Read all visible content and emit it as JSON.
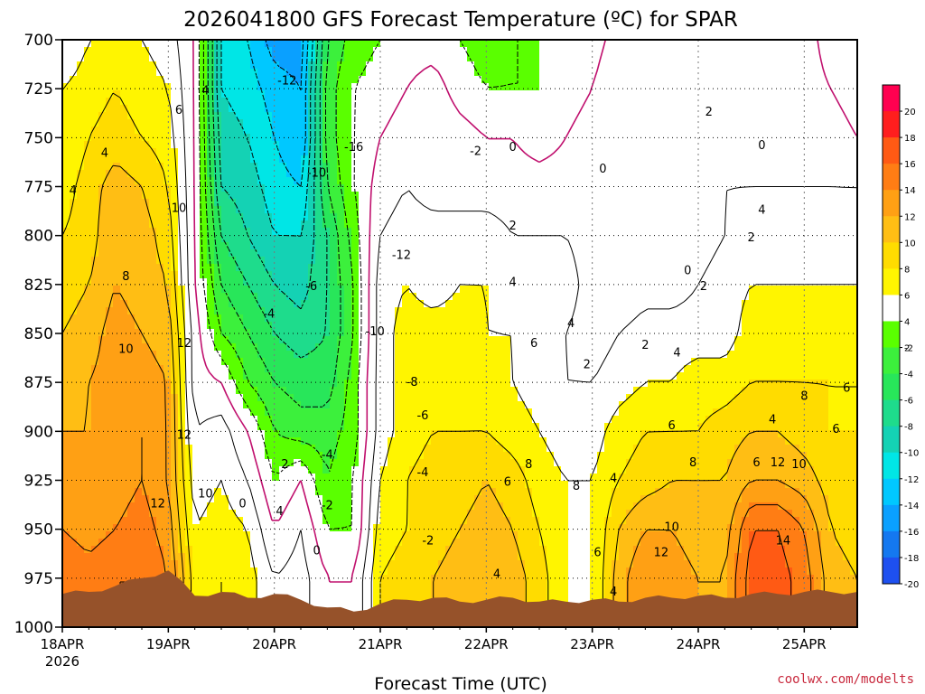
{
  "chart_data": {
    "type": "heatmap",
    "title": "2026041800 GFS Forecast Temperature (ºC) for SPAR",
    "xlabel": "Forecast Time (UTC)",
    "ylabel": "",
    "credit": "coolwx.com/modelts",
    "y_ticks": [
      "700",
      "725",
      "750",
      "775",
      "800",
      "825",
      "850",
      "875",
      "900",
      "925",
      "950",
      "975",
      "1000"
    ],
    "ylim": [
      1000,
      700
    ],
    "x_ticks": [
      "18APR",
      "19APR",
      "20APR",
      "21APR",
      "22APR",
      "23APR",
      "24APR",
      "25APR"
    ],
    "x_first_year": "2026",
    "xlim_days": [
      0,
      7.5
    ],
    "grid": true,
    "colorbar": {
      "labels": [
        "20",
        "18",
        "16",
        "14",
        "12",
        "10",
        "8",
        "6",
        "4",
        "2",
        "-2",
        "-4",
        "-6",
        "-8",
        "-10",
        "-12",
        "-14",
        "-16",
        "-18",
        "-20"
      ],
      "colors": [
        "#ff0050",
        "#ff1e1e",
        "#ff5a14",
        "#ff7d14",
        "#ffa014",
        "#ffbe14",
        "#ffdc00",
        "#fff500",
        "#ffffff",
        "#5aff00",
        "#3cf03c",
        "#28e65a",
        "#1edc8c",
        "#14d2b4",
        "#00e6e6",
        "#00c8ff",
        "#0aa0ff",
        "#1478f0",
        "#1e50f0"
      ]
    },
    "x_days": [
      0,
      0.25,
      0.5,
      0.75,
      1,
      1.25,
      1.5,
      1.75,
      2,
      2.25,
      2.5,
      2.75,
      3,
      3.25,
      3.5,
      3.75,
      4,
      4.25,
      4.5,
      4.75,
      5,
      5.25,
      5.5,
      5.75,
      6,
      6.25,
      6.5,
      6.75,
      7,
      7.25,
      7.5
    ],
    "levels_hpa": [
      700,
      725,
      750,
      775,
      800,
      825,
      850,
      875,
      900,
      925,
      950,
      975
    ],
    "temperature_c": [
      [
        2,
        4,
        4,
        4,
        3,
        0,
        -12,
        -14,
        -17,
        -17,
        -6,
        -3,
        -2,
        -1,
        -1,
        -2,
        -3,
        -2,
        -2,
        -2,
        -1,
        1,
        2,
        1,
        0,
        0,
        1,
        1,
        1,
        -1,
        -2
      ],
      [
        4,
        5,
        6,
        5,
        4,
        0,
        -12,
        -13,
        -15,
        -16,
        -5,
        -2,
        -1,
        0,
        1,
        -1,
        -2,
        -2,
        -2,
        -1,
        0,
        2,
        2,
        1,
        0,
        1,
        1,
        1,
        1,
        0,
        -1
      ],
      [
        4,
        6,
        7,
        6,
        5,
        0,
        -11,
        -12,
        -14,
        -16,
        -5,
        -2,
        0,
        1,
        2,
        1,
        0,
        0,
        -1,
        0,
        1,
        1,
        1,
        0,
        0,
        1,
        1,
        1,
        1,
        1,
        0
      ],
      [
        5,
        7,
        9,
        8,
        6,
        0,
        -10,
        -11,
        -13,
        -14,
        -6,
        -2,
        1,
        2,
        1,
        1,
        1,
        1,
        1,
        1,
        1,
        1,
        2,
        1,
        1,
        2,
        2,
        2,
        2,
        2,
        2
      ],
      [
        6,
        7,
        10,
        9,
        7,
        0,
        -8,
        -10,
        -12,
        -12,
        -8,
        -3,
        2,
        3,
        3,
        3,
        3,
        2,
        2,
        2,
        1,
        1,
        1,
        1,
        1,
        2,
        3,
        3,
        3,
        3,
        3
      ],
      [
        7,
        8,
        10,
        9,
        8,
        0,
        -6,
        -8,
        -10,
        -11,
        -8,
        -4,
        3,
        4,
        3,
        4,
        4,
        3,
        3,
        3,
        1,
        0,
        1,
        1,
        2,
        3,
        4,
        4,
        4,
        4,
        4
      ],
      [
        8,
        9,
        11,
        10,
        9,
        1,
        -4,
        -6,
        -8,
        -9,
        -8,
        -4,
        3,
        5,
        5,
        5,
        4,
        4,
        3,
        2,
        1,
        2,
        3,
        3,
        3,
        3,
        5,
        5,
        5,
        5,
        5
      ],
      [
        9,
        10,
        11,
        11,
        10,
        1,
        0,
        -4,
        -6,
        -7,
        -7,
        -3,
        3,
        5,
        5,
        5,
        5,
        4,
        3,
        2,
        2,
        3,
        4,
        4,
        5,
        5,
        6,
        6,
        6,
        6,
        6
      ],
      [
        10,
        10,
        12,
        12,
        10,
        2,
        3,
        0,
        -4,
        -5,
        -5,
        -3,
        3,
        5,
        6,
        6,
        6,
        5,
        4,
        3,
        3,
        5,
        6,
        6,
        6,
        7,
        8,
        8,
        7,
        6,
        6
      ],
      [
        11,
        10,
        11,
        12,
        10,
        3,
        4,
        2,
        -2,
        0,
        -4,
        -2,
        4,
        6,
        7,
        7,
        8,
        7,
        5,
        4,
        4,
        6,
        7,
        8,
        8,
        8,
        10,
        10,
        9,
        7,
        6
      ],
      [
        12,
        11,
        12,
        13,
        11,
        4,
        5,
        4,
        0,
        2,
        -2,
        -2,
        5,
        6,
        7,
        8,
        9,
        8,
        6,
        4,
        4,
        8,
        10,
        10,
        9,
        9,
        14,
        14,
        12,
        8,
        7
      ],
      [
        14,
        13,
        14,
        14,
        12,
        5,
        6,
        5,
        2,
        3,
        0,
        0,
        6,
        7,
        8,
        9,
        10,
        9,
        7,
        4,
        4,
        9,
        12,
        11,
        10,
        10,
        15,
        15,
        13,
        9,
        8
      ]
    ],
    "surface_hpa": [
      983,
      982,
      979,
      975,
      971,
      984,
      982,
      985,
      983,
      986,
      990,
      992,
      988,
      986,
      985,
      987,
      986,
      985,
      987,
      987,
      986,
      987,
      985,
      985,
      984,
      985,
      983,
      983,
      982,
      982,
      982
    ],
    "contour_labels": [
      {
        "text": "-12",
        "day": 2.12,
        "hpa": 721
      },
      {
        "text": "-16",
        "day": 2.75,
        "hpa": 755
      },
      {
        "text": "-10",
        "day": 2.4,
        "hpa": 768
      },
      {
        "text": "-12",
        "day": 3.2,
        "hpa": 810
      },
      {
        "text": "-6",
        "day": 2.35,
        "hpa": 826
      },
      {
        "text": "-4",
        "day": 1.95,
        "hpa": 840
      },
      {
        "text": "-10",
        "day": 2.95,
        "hpa": 849
      },
      {
        "text": "-8",
        "day": 3.3,
        "hpa": 875
      },
      {
        "text": "-6",
        "day": 3.4,
        "hpa": 892
      },
      {
        "text": "-4",
        "day": 2.5,
        "hpa": 912
      },
      {
        "text": "-4",
        "day": 3.4,
        "hpa": 921
      },
      {
        "text": "-2",
        "day": 2.5,
        "hpa": 938
      },
      {
        "text": "-2",
        "day": 3.45,
        "hpa": 956
      },
      {
        "text": "0",
        "day": 2.4,
        "hpa": 961
      },
      {
        "text": "0",
        "day": 1.7,
        "hpa": 937
      },
      {
        "text": "2",
        "day": 2.1,
        "hpa": 917
      },
      {
        "text": "4",
        "day": 2.05,
        "hpa": 941
      },
      {
        "text": "4",
        "day": 1.35,
        "hpa": 726
      },
      {
        "text": "6",
        "day": 1.1,
        "hpa": 736
      },
      {
        "text": "4",
        "day": 0.4,
        "hpa": 758
      },
      {
        "text": "4",
        "day": 0.1,
        "hpa": 777
      },
      {
        "text": "10",
        "day": 1.1,
        "hpa": 786
      },
      {
        "text": "8",
        "day": 0.6,
        "hpa": 821
      },
      {
        "text": "10",
        "day": 0.6,
        "hpa": 858
      },
      {
        "text": "12",
        "day": 1.15,
        "hpa": 855
      },
      {
        "text": "12",
        "day": 1.15,
        "hpa": 902
      },
      {
        "text": "12",
        "day": 0.9,
        "hpa": 937
      },
      {
        "text": "10",
        "day": 1.35,
        "hpa": 932
      },
      {
        "text": "-2",
        "day": 3.9,
        "hpa": 757
      },
      {
        "text": "0",
        "day": 4.25,
        "hpa": 755
      },
      {
        "text": "0",
        "day": 5.1,
        "hpa": 766
      },
      {
        "text": "2",
        "day": 6.1,
        "hpa": 737
      },
      {
        "text": "0",
        "day": 6.6,
        "hpa": 754
      },
      {
        "text": "2",
        "day": 4.25,
        "hpa": 795
      },
      {
        "text": "4",
        "day": 4.25,
        "hpa": 824
      },
      {
        "text": "4",
        "day": 4.8,
        "hpa": 845
      },
      {
        "text": "6",
        "day": 4.45,
        "hpa": 855
      },
      {
        "text": "2",
        "day": 4.95,
        "hpa": 866
      },
      {
        "text": "2",
        "day": 5.5,
        "hpa": 856
      },
      {
        "text": "0",
        "day": 5.9,
        "hpa": 818
      },
      {
        "text": "2",
        "day": 6.05,
        "hpa": 826
      },
      {
        "text": "4",
        "day": 6.6,
        "hpa": 787
      },
      {
        "text": "2",
        "day": 6.5,
        "hpa": 801
      },
      {
        "text": "4",
        "day": 5.8,
        "hpa": 860
      },
      {
        "text": "6",
        "day": 7.4,
        "hpa": 878
      },
      {
        "text": "8",
        "day": 7.0,
        "hpa": 882
      },
      {
        "text": "4",
        "day": 6.7,
        "hpa": 894
      },
      {
        "text": "6",
        "day": 7.3,
        "hpa": 899
      },
      {
        "text": "6",
        "day": 5.75,
        "hpa": 897
      },
      {
        "text": "8",
        "day": 5.95,
        "hpa": 916
      },
      {
        "text": "6",
        "day": 6.55,
        "hpa": 916
      },
      {
        "text": "12",
        "day": 6.75,
        "hpa": 916
      },
      {
        "text": "10",
        "day": 6.95,
        "hpa": 917
      },
      {
        "text": "14",
        "day": 6.8,
        "hpa": 956
      },
      {
        "text": "10",
        "day": 5.75,
        "hpa": 949
      },
      {
        "text": "12",
        "day": 5.65,
        "hpa": 962
      },
      {
        "text": "6",
        "day": 4.2,
        "hpa": 926
      },
      {
        "text": "8",
        "day": 4.4,
        "hpa": 917
      },
      {
        "text": "8",
        "day": 4.85,
        "hpa": 928
      },
      {
        "text": "4",
        "day": 4.1,
        "hpa": 973
      },
      {
        "text": "6",
        "day": 5.05,
        "hpa": 962
      },
      {
        "text": "4",
        "day": 5.2,
        "hpa": 924
      },
      {
        "text": "4",
        "day": 5.2,
        "hpa": 982
      }
    ]
  }
}
